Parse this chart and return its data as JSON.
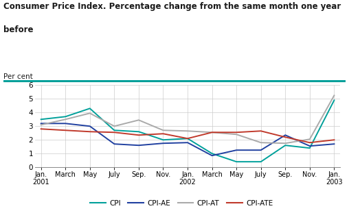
{
  "title_line1": "Consumer Price Index. Percentage change from the same month one year",
  "title_line2": "before",
  "ylabel": "Per cent",
  "ylim": [
    0,
    6
  ],
  "yticks": [
    0,
    1,
    2,
    3,
    4,
    5,
    6
  ],
  "x_labels": [
    "Jan.\n2001",
    "March",
    "May",
    "July",
    "Sep.",
    "Nov.",
    "Jan.\n2002",
    "March",
    "May",
    "July",
    "Sep.",
    "Nov.",
    "Jan.\n2003"
  ],
  "x_positions": [
    0,
    2,
    4,
    6,
    8,
    10,
    12,
    14,
    16,
    18,
    20,
    22,
    24
  ],
  "CPI": [
    3.5,
    3.7,
    4.3,
    2.7,
    2.6,
    2.0,
    2.1,
    1.0,
    0.4,
    0.4,
    1.6,
    1.4,
    4.9
  ],
  "CPI_AE": [
    3.2,
    3.2,
    3.0,
    1.7,
    1.6,
    1.75,
    1.8,
    0.85,
    1.25,
    1.25,
    2.35,
    1.55,
    1.7
  ],
  "CPI_AT": [
    3.1,
    3.5,
    3.95,
    3.0,
    3.45,
    2.7,
    2.65,
    2.55,
    2.4,
    1.8,
    1.75,
    2.05,
    5.25
  ],
  "CPI_ATE": [
    2.8,
    2.7,
    2.6,
    2.55,
    2.35,
    2.45,
    2.1,
    2.55,
    2.55,
    2.65,
    2.2,
    1.8,
    2.0
  ],
  "color_CPI": "#00A09A",
  "color_CPI_AE": "#2040A0",
  "color_CPI_AT": "#AAAAAA",
  "color_CPI_ATE": "#C0392B",
  "title_color": "#1a1a1a",
  "header_line_color": "#00A09A",
  "bg_color": "#FFFFFF",
  "grid_color": "#CCCCCC",
  "legend_labels": [
    "CPI",
    "CPI-AE",
    "CPI-AT",
    "CPI-ATE"
  ]
}
